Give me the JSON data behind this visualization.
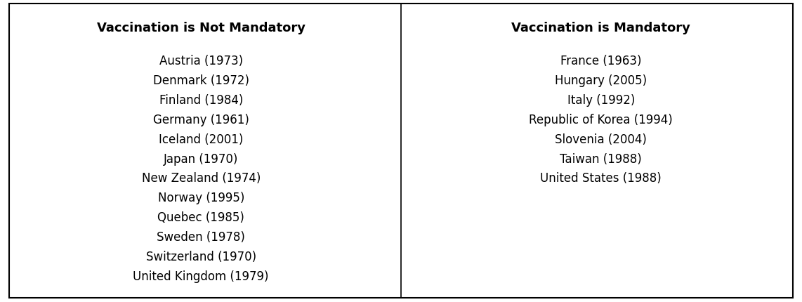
{
  "col1_header": "Vaccination is Not Mandatory",
  "col2_header": "Vaccination is Mandatory",
  "col1_items": [
    "Austria (1973)",
    "Denmark (1972)",
    "Finland (1984)",
    "Germany (1961)",
    "Iceland (2001)",
    "Japan (1970)",
    "New Zealand (1974)",
    "Norway (1995)",
    "Quebec (1985)",
    "Sweden (1978)",
    "Switzerland (1970)",
    "United Kingdom (1979)"
  ],
  "col2_items": [
    "France (1963)",
    "Hungary (2005)",
    "Italy (1992)",
    "Republic of Korea (1994)",
    "Slovenia (2004)",
    "Taiwan (1988)",
    "United States (1988)"
  ],
  "background_color": "#ffffff",
  "border_color": "#000000",
  "text_color": "#000000",
  "header_fontsize": 13,
  "item_fontsize": 12,
  "figsize": [
    11.42,
    4.31
  ],
  "dpi": 100
}
